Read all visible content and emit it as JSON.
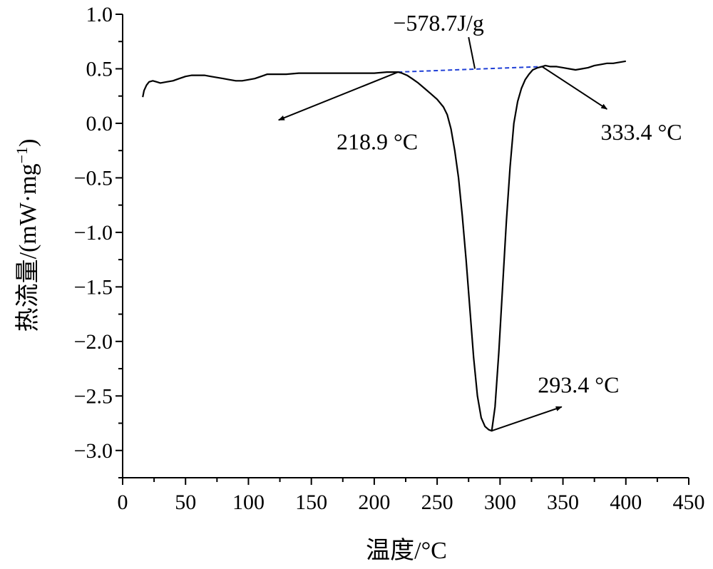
{
  "chart_data": {
    "type": "line",
    "xlabel": "温度/°C",
    "ylabel": "热流量/(mW·mg",
    "ylabel_sup": "−1",
    "ylabel_close": ")",
    "xlim": [
      0,
      450
    ],
    "ylim": [
      -3.25,
      1.0
    ],
    "x_ticks": [
      0,
      50,
      100,
      150,
      200,
      250,
      300,
      350,
      400,
      450
    ],
    "x_tick_labels": [
      "0",
      "50",
      "100",
      "150",
      "200",
      "250",
      "300",
      "350",
      "400",
      "450"
    ],
    "y_ticks": [
      1.0,
      0.5,
      0.0,
      -0.5,
      -1.0,
      -1.5,
      -2.0,
      -2.5,
      -3.0
    ],
    "y_tick_labels": [
      "1.0",
      "0.5",
      "0.0",
      "−0.5",
      "−1.0",
      "−1.5",
      "−2.0",
      "−2.5",
      "−3.0"
    ],
    "grid": false,
    "series": [
      {
        "color": "#000000",
        "x": [
          16,
          17,
          19,
          21,
          24,
          27,
          30,
          35,
          40,
          45,
          50,
          55,
          60,
          65,
          70,
          75,
          80,
          85,
          90,
          95,
          100,
          105,
          110,
          115,
          120,
          130,
          140,
          150,
          160,
          170,
          180,
          190,
          200,
          210,
          215,
          219,
          222,
          226,
          230,
          235,
          240,
          245,
          250,
          255,
          258,
          261,
          264,
          267,
          270,
          273,
          276,
          279,
          282,
          285,
          288,
          291,
          293.4,
          296,
          299,
          302,
          305,
          308,
          311,
          314,
          317,
          320,
          323,
          326,
          330,
          333.4,
          336,
          340,
          345,
          350,
          355,
          360,
          365,
          370,
          375,
          380,
          385,
          390,
          395,
          400
        ],
        "y": [
          0.24,
          0.3,
          0.35,
          0.38,
          0.39,
          0.38,
          0.37,
          0.38,
          0.39,
          0.41,
          0.43,
          0.44,
          0.44,
          0.44,
          0.43,
          0.42,
          0.41,
          0.4,
          0.39,
          0.39,
          0.4,
          0.41,
          0.43,
          0.45,
          0.45,
          0.45,
          0.46,
          0.46,
          0.46,
          0.46,
          0.46,
          0.46,
          0.46,
          0.47,
          0.47,
          0.47,
          0.46,
          0.44,
          0.41,
          0.37,
          0.32,
          0.27,
          0.22,
          0.15,
          0.08,
          -0.05,
          -0.25,
          -0.5,
          -0.85,
          -1.25,
          -1.7,
          -2.15,
          -2.5,
          -2.7,
          -2.78,
          -2.81,
          -2.82,
          -2.6,
          -2.1,
          -1.5,
          -0.9,
          -0.4,
          0.0,
          0.2,
          0.32,
          0.4,
          0.45,
          0.49,
          0.51,
          0.52,
          0.53,
          0.52,
          0.52,
          0.51,
          0.5,
          0.49,
          0.5,
          0.51,
          0.53,
          0.54,
          0.55,
          0.55,
          0.56,
          0.57
        ]
      }
    ],
    "baseline": {
      "x": [
        218.9,
        333.4
      ],
      "y": [
        0.47,
        0.52
      ],
      "color": "#1f3fd6"
    },
    "annotations": [
      {
        "text": "−578.7J/g",
        "tx": 215,
        "ty": 0.85,
        "ax": 275,
        "ay": 0.79,
        "bx": 280,
        "by": 0.5,
        "arrow": false
      },
      {
        "text": "218.9 °C",
        "tx": 170,
        "ty": -0.24,
        "ax": 218.9,
        "ay": 0.47,
        "bx": 124,
        "by": 0.03,
        "arrow": true
      },
      {
        "text": "333.4 °C",
        "tx": 380,
        "ty": -0.15,
        "ax": 333.4,
        "ay": 0.52,
        "bx": 385,
        "by": 0.13,
        "arrow": true
      },
      {
        "text": "293.4 °C",
        "tx": 330,
        "ty": -2.47,
        "ax": 293.4,
        "ay": -2.82,
        "bx": 349,
        "by": -2.6,
        "arrow": true
      }
    ]
  }
}
